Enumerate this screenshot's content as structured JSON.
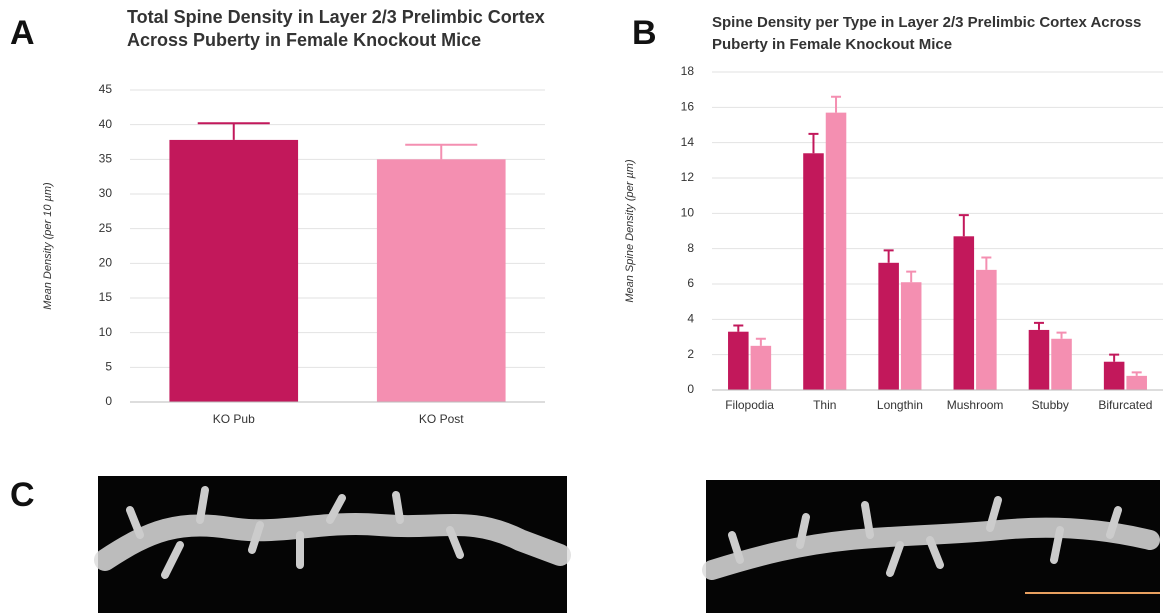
{
  "panels": [
    "A",
    "B",
    "C"
  ],
  "chart_data": [
    {
      "type": "bar",
      "title": "Total Spine Density in Layer 2/3 Prelimbic Cortex Across Puberty in Female Knockout Mice",
      "y_label": "Mean Density (per 10 µm)",
      "categories": [
        "KO Pub",
        "KO Post"
      ],
      "values": [
        37.8,
        35
      ],
      "errors": [
        2.4,
        2.1
      ],
      "colors": [
        "#c2185b",
        "#f48fb1"
      ],
      "ylim": [
        0,
        45
      ],
      "yticks": [
        0,
        5,
        10,
        15,
        20,
        25,
        30,
        35,
        40,
        45
      ],
      "grid": true
    },
    {
      "type": "grouped_bar",
      "title": "Spine Density per Type in Layer 2/3 Prelimbic Cortex Across Puberty in Female Knockout Mice",
      "y_label": "Mean Spine Density (per µm)",
      "categories": [
        "Filopodia",
        "Thin",
        "Longthin",
        "Mushroom",
        "Stubby",
        "Bifurcated"
      ],
      "series": [
        {
          "color": "#c2185b",
          "values": [
            3.3,
            13.4,
            7.2,
            8.7,
            3.4,
            1.6
          ],
          "errors": [
            0.35,
            1.1,
            0.7,
            1.2,
            0.4,
            0.4
          ]
        },
        {
          "color": "#f48fb1",
          "values": [
            2.5,
            15.7,
            6.1,
            6.8,
            2.9,
            0.8
          ],
          "errors": [
            0.4,
            0.9,
            0.6,
            0.7,
            0.35,
            0.2
          ]
        }
      ],
      "ylim": [
        0,
        18
      ],
      "yticks": [
        0,
        2,
        4,
        6,
        8,
        10,
        12,
        14,
        16,
        18
      ],
      "grid": true
    }
  ]
}
